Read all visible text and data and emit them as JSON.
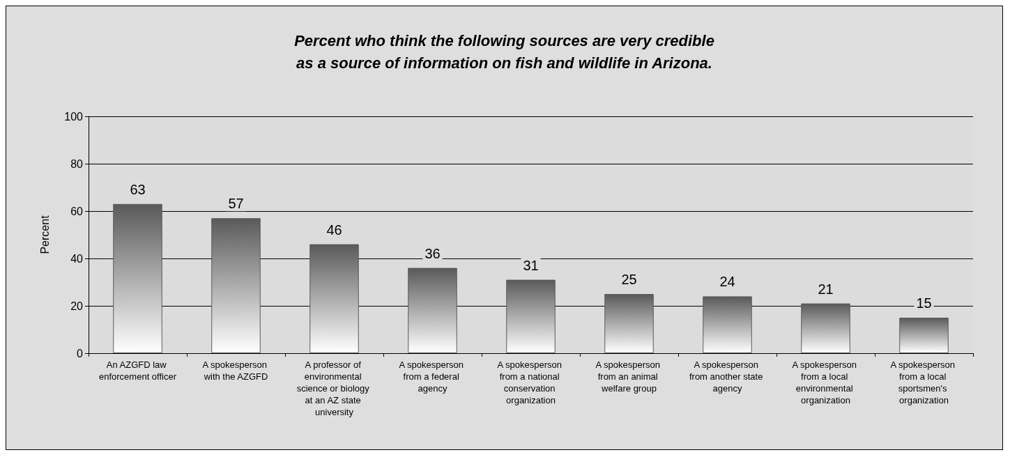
{
  "chart_data": {
    "type": "bar",
    "title": "Percent who think the following sources are very credible\nas a source of information on fish and wildlife in Arizona.",
    "ylabel": "Percent",
    "categories": [
      "An AZGFD law enforcement officer",
      "A spokesperson with the AZGFD",
      "A professor of environmental science or biology at an AZ state university",
      "A spokesperson from a federal agency",
      "A spokesperson from a national conservation organization",
      "A spokesperson from an animal welfare group",
      "A spokesperson from another state agency",
      "A spokesperson from a local environmental organization",
      "A spokesperson from a local sportsmen's organization"
    ],
    "values": [
      63,
      57,
      46,
      36,
      31,
      25,
      24,
      21,
      15
    ],
    "color": "#5a5a5a",
    "ylim": [
      0,
      100
    ],
    "yticks": [
      0,
      20,
      40,
      60,
      80,
      100
    ],
    "grid": "y",
    "data_labels": true
  }
}
